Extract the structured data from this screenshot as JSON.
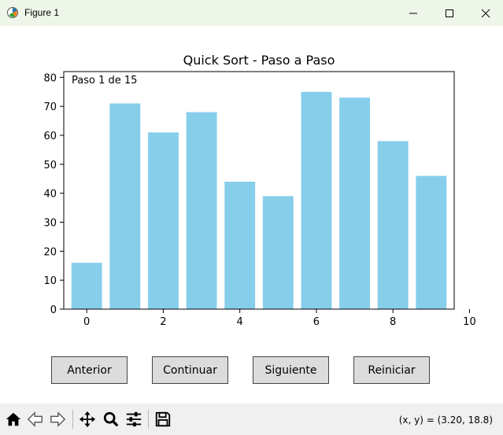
{
  "window": {
    "title": "Figure 1"
  },
  "chart_data": {
    "type": "bar",
    "title": "Quick Sort - Paso a Paso",
    "annotation": "Paso 1 de 15",
    "x": [
      0,
      1,
      2,
      3,
      4,
      5,
      6,
      7,
      8,
      9
    ],
    "values": [
      16,
      71,
      61,
      68,
      44,
      39,
      75,
      73,
      58,
      46
    ],
    "xlim": [
      -0.6,
      9.6
    ],
    "ylim": [
      0,
      82
    ],
    "xticks": [
      0,
      2,
      4,
      6,
      8,
      10
    ],
    "yticks": [
      0,
      10,
      20,
      30,
      40,
      50,
      60,
      70,
      80
    ],
    "bar_color": "#87ceeb",
    "grid": false
  },
  "buttons": {
    "anterior": "Anterior",
    "continuar": "Continuar",
    "siguiente": "Siguiente",
    "reiniciar": "Reiniciar"
  },
  "toolbar": {
    "items": [
      "home-icon",
      "back-icon",
      "forward-icon",
      "pan-icon",
      "zoom-icon",
      "configure-subplots-icon",
      "save-icon"
    ],
    "coords": "(x, y) = (3.20, 18.8)"
  }
}
